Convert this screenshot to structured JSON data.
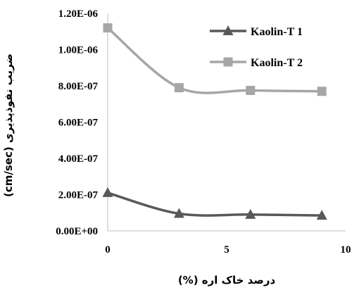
{
  "chart_data": {
    "type": "line",
    "xlabel": "درصد خاک اره (%)",
    "ylabel": "ضریب نفوذپذیری (cm/sec)",
    "xlim": [
      0,
      10
    ],
    "ylim": [
      0,
      1.2e-06
    ],
    "x_ticks": [
      "0",
      "5",
      "10"
    ],
    "x_tick_values": [
      0,
      5,
      10
    ],
    "y_ticks": [
      "0.00E+00",
      "2.00E-07",
      "4.00E-07",
      "6.00E-07",
      "8.00E-07",
      "1.00E-06",
      "1.20E-06"
    ],
    "y_tick_values": [
      0,
      2e-07,
      4e-07,
      6e-07,
      8e-07,
      1e-06,
      1.2e-06
    ],
    "grid": false,
    "legend_position": "top-right",
    "series": [
      {
        "name": "Kaolin-T 1",
        "marker": "triangle",
        "color": "#595959",
        "x": [
          0,
          3,
          6,
          9
        ],
        "values": [
          2.1e-07,
          9.5e-08,
          9e-08,
          8.5e-08
        ]
      },
      {
        "name": "Kaolin-T 2",
        "marker": "square",
        "color": "#a6a6a6",
        "x": [
          0,
          3,
          6,
          9
        ],
        "values": [
          1.12e-06,
          7.9e-07,
          7.75e-07,
          7.7e-07
        ]
      }
    ]
  }
}
